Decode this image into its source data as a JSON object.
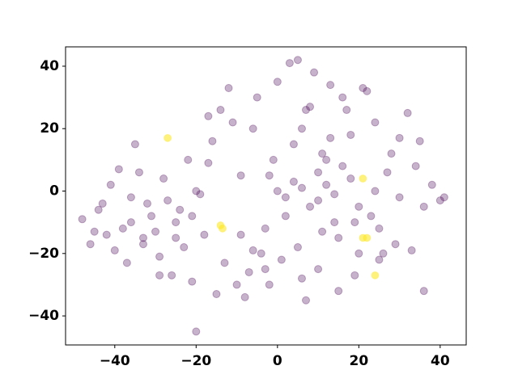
{
  "chart_data": {
    "type": "scatter",
    "xlim": [
      -52.1,
      46.4
    ],
    "ylim": [
      -49.3,
      46.2
    ],
    "xticks": [
      {
        "value": -40,
        "label": "−40"
      },
      {
        "value": -20,
        "label": "−20"
      },
      0,
      20,
      40
    ],
    "yticks": [
      {
        "value": -40,
        "label": "−40"
      },
      {
        "value": -20,
        "label": "−20"
      },
      0,
      20,
      40
    ],
    "alpha": 0.3,
    "series": [
      {
        "color": "#440154",
        "x": [
          -48,
          -45,
          -43,
          -40,
          -38,
          -36,
          -34,
          -33,
          -31,
          -29,
          -27,
          -25,
          -23,
          -21,
          -20,
          -44,
          -41,
          -37,
          -35,
          -30,
          -28,
          -24,
          -22,
          -19,
          -18,
          -16,
          -14,
          -12,
          -10,
          -8,
          -6,
          -4,
          -2,
          0,
          2,
          4,
          6,
          8,
          10,
          12,
          14,
          16,
          18,
          20,
          22,
          24,
          26,
          28,
          30,
          32,
          34,
          36,
          38,
          40,
          41,
          35,
          33,
          29,
          27,
          25,
          3,
          5,
          7,
          1,
          -1,
          -3,
          -5,
          -7,
          -9,
          -11,
          9,
          11,
          13,
          15,
          17,
          19,
          21,
          23,
          -15,
          -13,
          0,
          2,
          4,
          6,
          8,
          10,
          12,
          14,
          16,
          18,
          36,
          -46,
          -39,
          -32,
          -26,
          -17,
          -9,
          -2,
          7,
          13,
          -42,
          -36,
          -33,
          -29,
          -25,
          -21,
          -20,
          -17,
          -6,
          -3,
          5,
          10,
          15,
          20,
          25,
          30,
          24,
          19,
          11,
          6
        ],
        "y": [
          -9,
          -13,
          -4,
          -19,
          -12,
          -2,
          6,
          -17,
          -8,
          -27,
          -3,
          -10,
          -18,
          -29,
          -45,
          -6,
          2,
          -23,
          15,
          -13,
          4,
          -6,
          10,
          -1,
          -14,
          16,
          26,
          33,
          -30,
          -34,
          20,
          -20,
          5,
          35,
          -8,
          15,
          -28,
          27,
          -3,
          10,
          -10,
          30,
          18,
          -5,
          32,
          22,
          -20,
          12,
          -2,
          25,
          8,
          -5,
          2,
          -3,
          -2,
          16,
          -19,
          -17,
          6,
          -12,
          41,
          42,
          -35,
          -22,
          10,
          -12,
          30,
          -26,
          5,
          22,
          38,
          -13,
          34,
          -32,
          26,
          -27,
          33,
          -8,
          -33,
          -23,
          0,
          -2,
          3,
          1,
          -5,
          6,
          2,
          -1,
          8,
          4,
          -32,
          -17,
          7,
          -4,
          -27,
          24,
          -14,
          -30,
          26,
          17,
          -14,
          -10,
          -15,
          -21,
          -15,
          -8,
          0,
          9,
          -19,
          -25,
          -18,
          -25,
          -15,
          -20,
          -22,
          17,
          0,
          -10,
          12,
          20
        ]
      },
      {
        "color": "#fde725",
        "x": [
          -27,
          -14,
          -13.5,
          21,
          21,
          22,
          24
        ],
        "y": [
          17,
          -11,
          -12,
          4,
          -15,
          -15,
          -27
        ]
      }
    ]
  }
}
